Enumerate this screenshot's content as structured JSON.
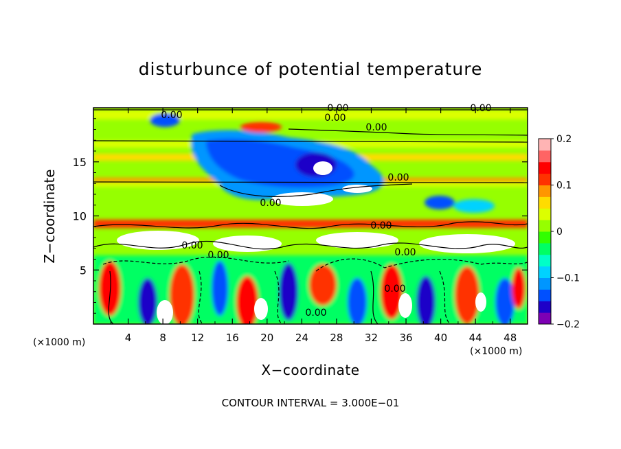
{
  "chart_data": {
    "type": "heatmap",
    "title": "disturbunce of potential temperature",
    "xlabel": "X−coordinate",
    "ylabel": "Z−coordinate",
    "x_unit": "(×1000 m)",
    "z_unit": "(×1000 m)",
    "xlim": [
      0,
      50
    ],
    "ylim": [
      0,
      20
    ],
    "x_ticks": [
      "4",
      "8",
      "12",
      "16",
      "20",
      "24",
      "28",
      "32",
      "36",
      "40",
      "44",
      "48"
    ],
    "y_ticks": [
      "5",
      "10",
      "15"
    ],
    "colorbar": {
      "range": [
        -0.2,
        0.2
      ],
      "tick_labels": [
        "0.2",
        "0.1",
        "0",
        "−0.1",
        "−0.2"
      ],
      "colors": [
        "#7d00b4",
        "#1e00c8",
        "#0050ff",
        "#0096ff",
        "#00d2ff",
        "#00ffc8",
        "#00ff64",
        "#32ff00",
        "#96ff00",
        "#dcff00",
        "#ffdc00",
        "#ff9600",
        "#ff3200",
        "#ff0000",
        "#ff6464",
        "#ffb4b4"
      ]
    },
    "contour_labels": [
      "0.00",
      "0.00",
      "0.00",
      "0.00",
      "0.00",
      "0.00",
      "0.00",
      "0.00",
      "0.00",
      "0.00",
      "0.00",
      "0.00",
      "0.00"
    ],
    "footer": "CONTOUR INTERVAL = 3.000E−01"
  }
}
